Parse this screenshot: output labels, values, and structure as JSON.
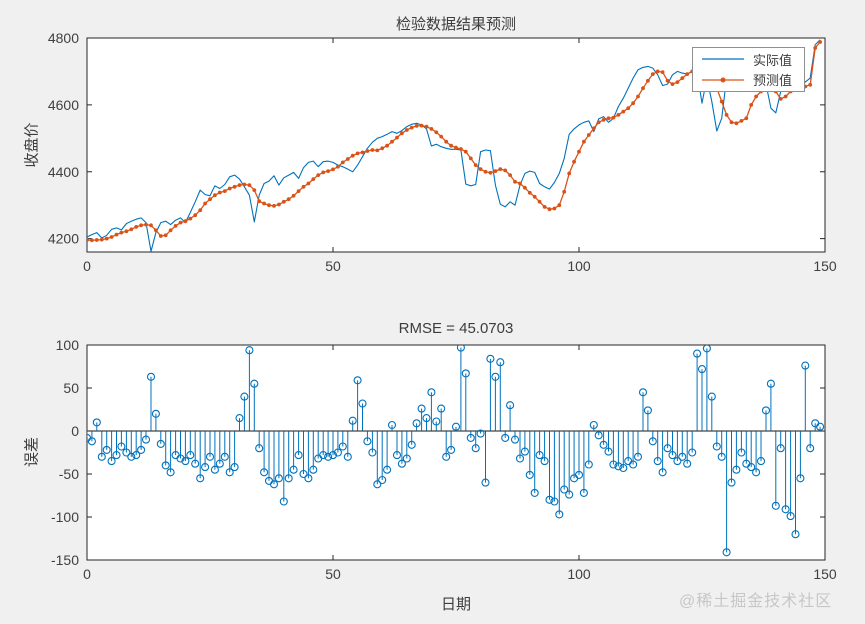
{
  "figure": {
    "background": "#f0f0f0",
    "watermark": "@稀土掘金技术社区"
  },
  "colors": {
    "axis": "#262626",
    "tick_text": "#404040",
    "title_text": "#3d3d3d",
    "actual": "#0072BD",
    "predicted": "#D95319",
    "stem": "#0072BD",
    "baseline": "#444444",
    "plot_bg": "#ffffff"
  },
  "chart_data": [
    {
      "type": "line",
      "title": "检验数据结果预测",
      "xlabel": "",
      "ylabel": "收盘价",
      "xlim": [
        0,
        150
      ],
      "ylim": [
        4160,
        4800
      ],
      "xticks": [
        0,
        50,
        100,
        150
      ],
      "yticks": [
        4200,
        4400,
        4600,
        4800
      ],
      "x_start": 0,
      "x_step": 1,
      "grid": false,
      "legend": {
        "position": "top-right",
        "entries": [
          {
            "label": "实际值",
            "style": "line"
          },
          {
            "label": "预测值",
            "style": "line-dot"
          }
        ]
      },
      "series": [
        {
          "name": "实际值",
          "color": "#0072BD",
          "marker": "none",
          "values": [
            4205,
            4212,
            4218,
            4202,
            4210,
            4228,
            4232,
            4226,
            4245,
            4252,
            4258,
            4262,
            4248,
            4162,
            4218,
            4248,
            4252,
            4242,
            4255,
            4262,
            4248,
            4278,
            4310,
            4345,
            4332,
            4328,
            4358,
            4350,
            4362,
            4385,
            4390,
            4378,
            4355,
            4330,
            4250,
            4330,
            4365,
            4372,
            4388,
            4360,
            4382,
            4390,
            4398,
            4380,
            4412,
            4428,
            4432,
            4415,
            4430,
            4432,
            4428,
            4420,
            4415,
            4408,
            4400,
            4420,
            4445,
            4470,
            4488,
            4500,
            4505,
            4512,
            4520,
            4515,
            4523,
            4535,
            4542,
            4545,
            4540,
            4528,
            4477,
            4482,
            4475,
            4470,
            4467,
            4467,
            4465,
            4363,
            4358,
            4362,
            4460,
            4465,
            4463,
            4360,
            4303,
            4295,
            4310,
            4300,
            4360,
            4395,
            4402,
            4398,
            4365,
            4355,
            4348,
            4368,
            4395,
            4440,
            4512,
            4528,
            4540,
            4548,
            4552,
            4520,
            4558,
            4565,
            4548,
            4560,
            4595,
            4620,
            4650,
            4680,
            4705,
            4712,
            4715,
            4710,
            4690,
            4658,
            4662,
            4690,
            4700,
            4695,
            4692,
            4700,
            4698,
            4605,
            4680,
            4610,
            4522,
            4560,
            4680,
            4692,
            4662,
            4640,
            4655,
            4660,
            4665,
            4670,
            4662,
            4590,
            4576,
            4640,
            4690,
            4700,
            4720,
            4692,
            4668,
            4680,
            4780,
            4795
          ]
        },
        {
          "name": "预测值",
          "color": "#D95319",
          "marker": "dot",
          "values": [
            4196,
            4195,
            4196,
            4197,
            4200,
            4205,
            4212,
            4218,
            4222,
            4228,
            4235,
            4240,
            4242,
            4240,
            4225,
            4208,
            4210,
            4225,
            4238,
            4248,
            4252,
            4260,
            4270,
            4285,
            4305,
            4318,
            4330,
            4338,
            4342,
            4350,
            4355,
            4360,
            4362,
            4360,
            4345,
            4312,
            4305,
            4300,
            4298,
            4302,
            4310,
            4318,
            4328,
            4342,
            4355,
            4365,
            4378,
            4390,
            4398,
            4402,
            4407,
            4415,
            4428,
            4438,
            4448,
            4455,
            4458,
            4462,
            4465,
            4464,
            4470,
            4478,
            4490,
            4502,
            4515,
            4525,
            4532,
            4537,
            4538,
            4535,
            4528,
            4518,
            4505,
            4490,
            4478,
            4472,
            4468,
            4460,
            4440,
            4420,
            4408,
            4400,
            4397,
            4402,
            4408,
            4404,
            4390,
            4370,
            4365,
            4352,
            4337,
            4325,
            4310,
            4295,
            4288,
            4290,
            4300,
            4340,
            4395,
            4430,
            4460,
            4490,
            4510,
            4530,
            4548,
            4555,
            4560,
            4562,
            4570,
            4580,
            4590,
            4605,
            4625,
            4650,
            4672,
            4692,
            4700,
            4698,
            4672,
            4662,
            4668,
            4680,
            4692,
            4700,
            4702,
            4700,
            4695,
            4680,
            4650,
            4610,
            4570,
            4548,
            4545,
            4552,
            4560,
            4600,
            4625,
            4640,
            4650,
            4655,
            4640,
            4618,
            4625,
            4640,
            4650,
            4660,
            4655,
            4660,
            4770,
            4788
          ]
        }
      ]
    },
    {
      "type": "stem",
      "title": "RMSE = 45.0703",
      "xlabel": "日期",
      "ylabel": "误差",
      "xlim": [
        0,
        150
      ],
      "ylim": [
        -150,
        100
      ],
      "xticks": [
        0,
        50,
        100,
        150
      ],
      "yticks": [
        -150,
        -100,
        -50,
        0,
        50,
        100
      ],
      "x_start": 0,
      "x_step": 1,
      "grid": false,
      "baseline": 0,
      "color": "#0072BD",
      "values": [
        -8,
        -12,
        10,
        -30,
        -22,
        -35,
        -28,
        -18,
        -25,
        -30,
        -28,
        -22,
        -10,
        63,
        20,
        -15,
        -40,
        -48,
        -28,
        -32,
        -35,
        -28,
        -38,
        -55,
        -42,
        -30,
        -45,
        -38,
        -30,
        -48,
        -42,
        15,
        40,
        94,
        55,
        -20,
        -48,
        -58,
        -62,
        -55,
        -82,
        -55,
        -45,
        -28,
        -50,
        -55,
        -45,
        -32,
        -28,
        -30,
        -28,
        -25,
        -18,
        -30,
        12,
        59,
        32,
        -12,
        -25,
        -62,
        -57,
        -45,
        7,
        -28,
        -38,
        -32,
        -16,
        9,
        26,
        15,
        45,
        11,
        26,
        -30,
        -22,
        5,
        97,
        67,
        -8,
        -20,
        -3,
        -60,
        84,
        63,
        80,
        -8,
        30,
        -10,
        -32,
        -24,
        -51,
        -72,
        -28,
        -35,
        -80,
        -82,
        -97,
        -68,
        -74,
        -55,
        -51,
        -72,
        -39,
        7,
        -5,
        -16,
        -24,
        -39,
        -41,
        -43,
        -35,
        -39,
        -30,
        45,
        24,
        -12,
        -35,
        -48,
        -20,
        -28,
        -35,
        -30,
        -38,
        -25,
        90,
        72,
        96,
        40,
        -18,
        -30,
        -141,
        -60,
        -45,
        -25,
        -38,
        -42,
        -48,
        -35,
        24,
        55,
        -87,
        -20,
        -91,
        -99,
        -120,
        -55,
        76,
        -20,
        9,
        5
      ]
    }
  ]
}
